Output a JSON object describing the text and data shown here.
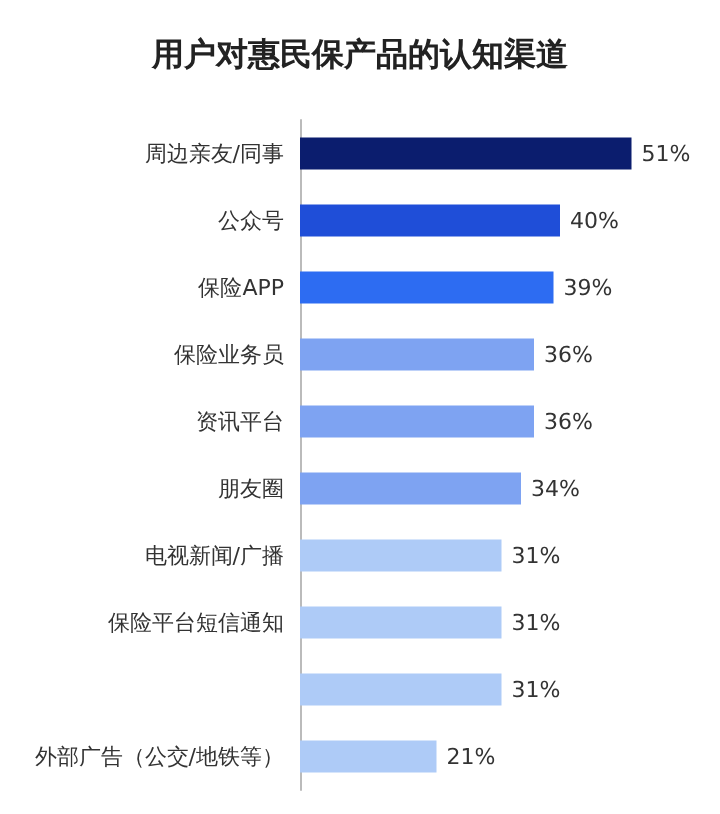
{
  "chart_data": {
    "type": "bar",
    "orientation": "horizontal",
    "title": "用户对惠民保产品的认知渠道",
    "categories": [
      "周边亲友/同事",
      "公众号",
      "保险APP",
      "保险业务员",
      "资讯平台",
      "朋友圈",
      "电视新闻/广播",
      "保险平台短信通知",
      null,
      "外部广告（公交/地铁等）"
    ],
    "values": [
      51,
      40,
      39,
      36,
      36,
      34,
      31,
      31,
      31,
      21
    ],
    "value_labels": [
      "51%",
      "40%",
      "39%",
      "36%",
      "36%",
      "34%",
      "31%",
      "31%",
      "31%",
      "21%"
    ],
    "colors": [
      "#0b1d6e",
      "#1f4ed8",
      "#2d6cf2",
      "#7ea3f2",
      "#7ea3f2",
      "#7ea3f2",
      "#aecbf7",
      "#aecbf7",
      "#aecbf7",
      "#aecbf7"
    ]
  }
}
